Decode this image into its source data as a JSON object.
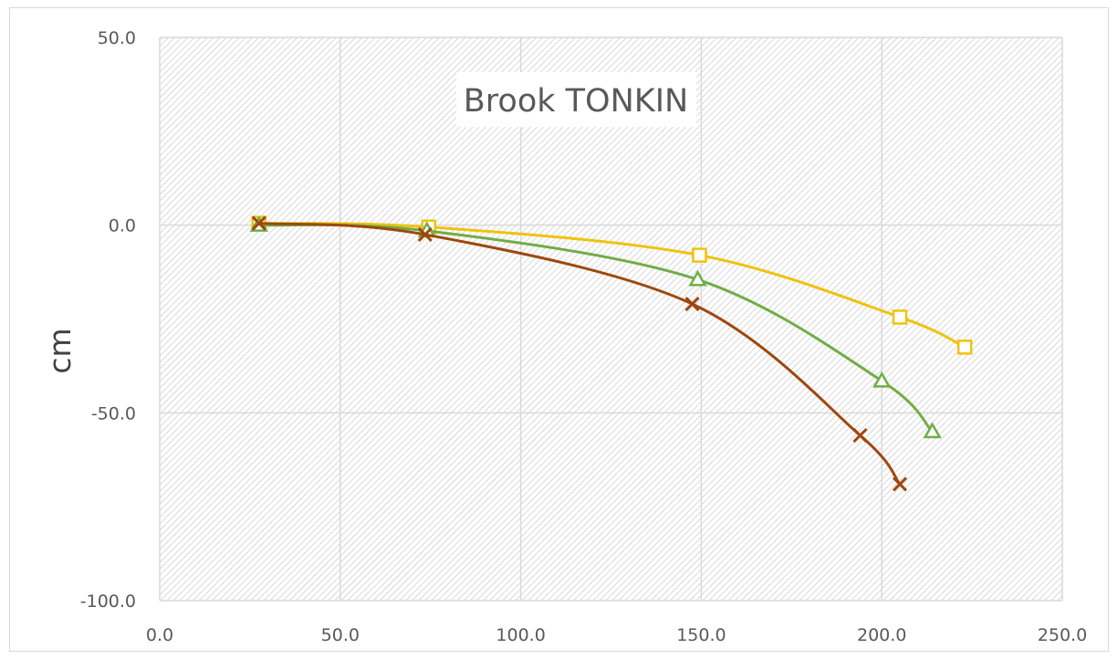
{
  "chart_data": {
    "type": "line",
    "title": "Brook TONKIN",
    "xlabel": "",
    "ylabel": "cm",
    "xlim": [
      0,
      250
    ],
    "ylim": [
      -100,
      50
    ],
    "x_ticks": [
      "0.0",
      "50.0",
      "100.0",
      "150.0",
      "200.0",
      "250.0"
    ],
    "y_ticks": [
      "50.0",
      "0.0",
      "-50.0",
      "-100.0"
    ],
    "grid": true,
    "legend": "none",
    "plot_background": "hatched",
    "series": [
      {
        "marker": "square",
        "color": "#f0c20f",
        "points": [
          [
            27.5,
            0.5
          ],
          [
            74.5,
            -0.5
          ],
          [
            149.5,
            -8.0
          ],
          [
            205.0,
            -24.5
          ],
          [
            223.0,
            -32.5
          ]
        ]
      },
      {
        "marker": "triangle",
        "color": "#70ad47",
        "points": [
          [
            27.5,
            0.0
          ],
          [
            74.0,
            -1.5
          ],
          [
            149.0,
            -14.5
          ],
          [
            200.0,
            -41.5
          ],
          [
            214.0,
            -55.0
          ]
        ]
      },
      {
        "marker": "x",
        "color": "#9e480e",
        "points": [
          [
            27.5,
            0.5
          ],
          [
            73.5,
            -2.5
          ],
          [
            147.5,
            -21.0
          ],
          [
            194.0,
            -56.0
          ],
          [
            205.0,
            -69.0
          ]
        ]
      }
    ]
  }
}
